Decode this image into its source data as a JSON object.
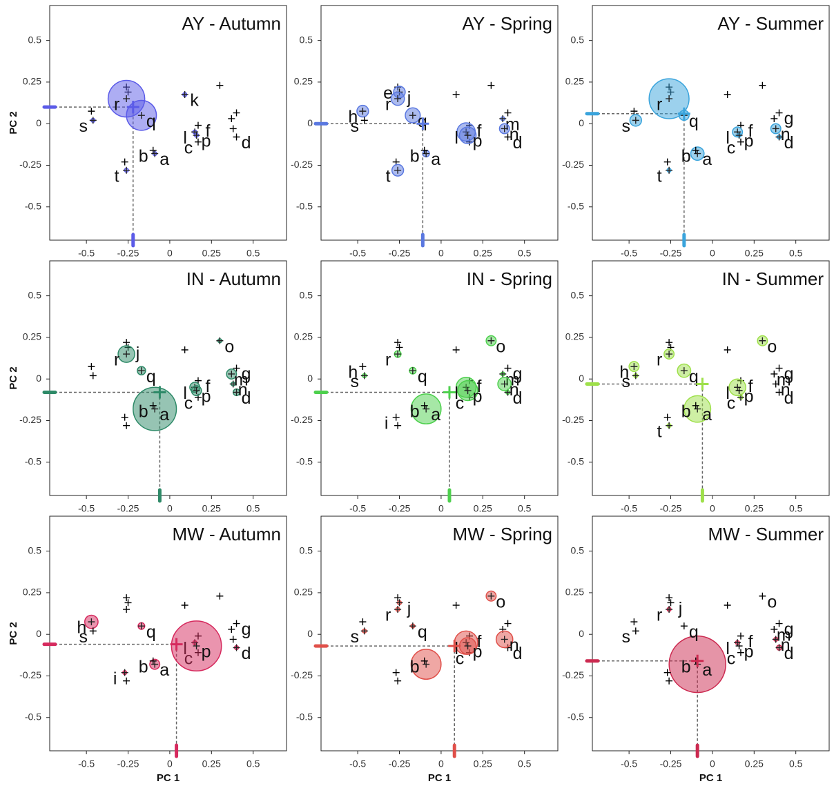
{
  "chart_data": [
    {
      "type": "scatter",
      "title": "AY - Autumn",
      "ylabel": "PC 2",
      "xlim": [
        -0.72,
        0.7
      ],
      "ylim": [
        -0.7,
        0.71
      ],
      "xticks": [
        -0.5,
        -0.25,
        0,
        0.25,
        0.5
      ],
      "yticks": [
        -0.5,
        -0.25,
        0,
        0.25,
        0.5
      ],
      "color": "#5b5be8",
      "labels": [
        "a",
        "b",
        "c",
        "d",
        null,
        "f",
        null,
        null,
        null,
        null,
        "k",
        "l",
        null,
        null,
        null,
        "p",
        "q",
        "r",
        "s",
        "t"
      ],
      "x": [
        -0.09,
        -0.1,
        0.17,
        0.4,
        -0.26,
        0.17,
        0.4,
        -0.47,
        -0.27,
        -0.25,
        0.09,
        0.15,
        0.37,
        0.38,
        0.3,
        0.16,
        -0.17,
        -0.26,
        -0.46,
        -0.26
      ],
      "y": [
        -0.18,
        -0.16,
        -0.11,
        -0.08,
        0.22,
        -0.01,
        0.065,
        0.075,
        -0.23,
        0.19,
        0.175,
        -0.05,
        0.03,
        -0.03,
        0.23,
        -0.07,
        0.05,
        0.15,
        0.02,
        -0.28
      ],
      "sizes": [
        0.012,
        null,
        null,
        null,
        null,
        null,
        null,
        null,
        null,
        null,
        0.012,
        0.012,
        null,
        null,
        null,
        0.012,
        0.09,
        0.11,
        0.012,
        0.012
      ],
      "centroid": [
        -0.22,
        0.1
      ]
    },
    {
      "type": "scatter",
      "title": "AY - Spring",
      "xlim": [
        -0.72,
        0.7
      ],
      "ylim": [
        -0.7,
        0.71
      ],
      "xticks": [
        -0.5,
        -0.25,
        0,
        0.25,
        0.5
      ],
      "yticks": [
        -0.5,
        -0.25,
        0,
        0.25,
        0.5
      ],
      "color": "#5a78e0",
      "labels": [
        "a",
        "b",
        null,
        "d",
        "e",
        "f",
        null,
        "h",
        null,
        "j",
        null,
        "l",
        "m",
        "n",
        null,
        "p",
        "q",
        "r",
        "s",
        "t"
      ],
      "x": [
        -0.09,
        -0.1,
        0.17,
        0.4,
        -0.26,
        0.17,
        0.4,
        -0.47,
        -0.27,
        -0.25,
        0.09,
        0.15,
        0.37,
        0.38,
        0.3,
        0.16,
        -0.17,
        -0.26,
        -0.46,
        -0.26
      ],
      "y": [
        -0.18,
        -0.16,
        -0.11,
        -0.08,
        0.22,
        -0.01,
        0.065,
        0.075,
        -0.23,
        0.19,
        0.175,
        -0.05,
        0.03,
        -0.03,
        0.23,
        -0.07,
        0.05,
        0.15,
        0.02,
        -0.28
      ],
      "sizes": [
        0.02,
        null,
        null,
        null,
        null,
        null,
        null,
        0.035,
        null,
        0.035,
        null,
        0.055,
        0.012,
        0.03,
        null,
        0.05,
        0.045,
        0.04,
        null,
        0.035
      ],
      "centroid": [
        -0.11,
        0.0
      ]
    },
    {
      "type": "scatter",
      "title": "AY - Summer",
      "xlim": [
        -0.72,
        0.7
      ],
      "ylim": [
        -0.7,
        0.71
      ],
      "xticks": [
        -0.5,
        -0.25,
        0,
        0.25,
        0.5
      ],
      "yticks": [
        -0.5,
        -0.25,
        0,
        0.25,
        0.5
      ],
      "color": "#3aa4dc",
      "labels": [
        "a",
        "b",
        "c",
        "d",
        null,
        "f",
        "g",
        null,
        null,
        null,
        null,
        "l",
        null,
        "n",
        null,
        "p",
        "q",
        "r",
        "s",
        "t"
      ],
      "x": [
        -0.09,
        -0.1,
        0.17,
        0.4,
        -0.26,
        0.17,
        0.4,
        -0.47,
        -0.27,
        -0.25,
        0.09,
        0.15,
        0.37,
        0.38,
        0.3,
        0.16,
        -0.17,
        -0.26,
        -0.46,
        -0.26
      ],
      "y": [
        -0.18,
        -0.16,
        -0.11,
        -0.08,
        0.22,
        -0.01,
        0.065,
        0.075,
        -0.23,
        0.19,
        0.175,
        -0.05,
        0.03,
        -0.03,
        0.23,
        -0.07,
        0.05,
        0.15,
        0.02,
        -0.28
      ],
      "sizes": [
        0.04,
        null,
        null,
        0.012,
        null,
        null,
        null,
        null,
        null,
        null,
        null,
        0.03,
        null,
        0.03,
        null,
        0.012,
        0.03,
        0.12,
        0.035,
        0.012
      ],
      "centroid": [
        -0.17,
        0.06
      ]
    },
    {
      "type": "scatter",
      "title": "IN - Autumn",
      "ylabel": "PC 2",
      "xlim": [
        -0.72,
        0.7
      ],
      "ylim": [
        -0.7,
        0.71
      ],
      "xticks": [
        -0.5,
        -0.25,
        0,
        0.25,
        0.5
      ],
      "yticks": [
        -0.5,
        -0.25,
        0,
        0.25,
        0.5
      ],
      "color": "#2e8a68",
      "labels": [
        "a",
        "b",
        "c",
        "d",
        null,
        "f",
        "g",
        null,
        null,
        "j",
        null,
        "l",
        "m",
        "n",
        "o",
        "p",
        "q",
        "r",
        null,
        null
      ],
      "x": [
        -0.09,
        -0.1,
        0.17,
        0.4,
        -0.26,
        0.17,
        0.4,
        -0.47,
        -0.27,
        -0.25,
        0.09,
        0.15,
        0.37,
        0.38,
        0.3,
        0.16,
        -0.17,
        -0.26,
        -0.46,
        -0.26
      ],
      "y": [
        -0.18,
        -0.16,
        -0.11,
        -0.08,
        0.22,
        -0.01,
        0.065,
        0.075,
        -0.23,
        0.19,
        0.175,
        -0.05,
        0.03,
        -0.03,
        0.23,
        -0.07,
        0.05,
        0.15,
        0.02,
        -0.28
      ],
      "sizes": [
        0.13,
        null,
        null,
        0.02,
        null,
        null,
        null,
        null,
        null,
        null,
        null,
        0.03,
        0.03,
        0.012,
        0.012,
        0.03,
        0.025,
        0.05,
        null,
        null
      ],
      "centroid": [
        -0.06,
        -0.08
      ]
    },
    {
      "type": "scatter",
      "title": "IN - Spring",
      "xlim": [
        -0.72,
        0.7
      ],
      "ylim": [
        -0.7,
        0.71
      ],
      "xticks": [
        -0.5,
        -0.25,
        0,
        0.25,
        0.5
      ],
      "yticks": [
        -0.5,
        -0.25,
        0,
        0.25,
        0.5
      ],
      "color": "#4dd04d",
      "labels": [
        "a",
        "b",
        "c",
        "d",
        null,
        "f",
        "g",
        "h",
        "i",
        null,
        null,
        "l",
        "m",
        "n",
        "o",
        "p",
        "q",
        "r",
        "s",
        null
      ],
      "x": [
        -0.09,
        -0.1,
        0.17,
        0.4,
        -0.26,
        0.17,
        0.4,
        -0.47,
        -0.27,
        -0.25,
        0.09,
        0.15,
        0.37,
        0.38,
        0.3,
        0.16,
        -0.17,
        -0.26,
        -0.46,
        -0.26
      ],
      "y": [
        -0.18,
        -0.16,
        -0.11,
        -0.08,
        0.22,
        -0.01,
        0.065,
        0.075,
        -0.23,
        0.19,
        0.175,
        -0.05,
        0.03,
        -0.03,
        0.23,
        -0.07,
        0.05,
        0.15,
        0.02,
        -0.28
      ],
      "sizes": [
        0.09,
        null,
        null,
        0.012,
        null,
        null,
        null,
        null,
        null,
        null,
        null,
        0.06,
        0.012,
        0.04,
        0.03,
        0.06,
        0.02,
        0.02,
        0.012,
        null
      ],
      "centroid": [
        0.05,
        -0.08
      ]
    },
    {
      "type": "scatter",
      "title": "IN - Summer",
      "xlim": [
        -0.72,
        0.7
      ],
      "ylim": [
        -0.7,
        0.71
      ],
      "xticks": [
        -0.5,
        -0.25,
        0,
        0.25,
        0.5
      ],
      "yticks": [
        -0.5,
        -0.25,
        0,
        0.25,
        0.5
      ],
      "color": "#9ee04a",
      "labels": [
        "a",
        "b",
        "c",
        "d",
        null,
        "f",
        "g",
        "h",
        null,
        null,
        null,
        "l",
        "m",
        "n",
        "o",
        "p",
        "q",
        "r",
        "s",
        "t"
      ],
      "x": [
        -0.09,
        -0.1,
        0.17,
        0.4,
        -0.26,
        0.17,
        0.4,
        -0.47,
        -0.27,
        -0.25,
        0.09,
        0.15,
        0.37,
        0.38,
        0.3,
        0.16,
        -0.17,
        -0.26,
        -0.46,
        -0.26
      ],
      "y": [
        -0.18,
        -0.16,
        -0.11,
        -0.08,
        0.22,
        -0.01,
        0.065,
        0.075,
        -0.23,
        0.19,
        0.175,
        -0.05,
        0.03,
        -0.03,
        0.23,
        -0.07,
        0.05,
        0.15,
        0.02,
        -0.28
      ],
      "sizes": [
        0.08,
        null,
        0.012,
        null,
        null,
        null,
        null,
        0.03,
        null,
        null,
        null,
        0.05,
        null,
        null,
        0.03,
        null,
        0.04,
        0.03,
        0.012,
        0.012
      ],
      "centroid": [
        -0.06,
        -0.03
      ]
    },
    {
      "type": "scatter",
      "title": "MW - Autumn",
      "xlabel": "PC 1",
      "ylabel": "PC 2",
      "xlim": [
        -0.72,
        0.7
      ],
      "ylim": [
        -0.7,
        0.71
      ],
      "xticks": [
        -0.5,
        -0.25,
        0,
        0.25,
        0.5
      ],
      "yticks": [
        -0.5,
        -0.25,
        0,
        0.25,
        0.5
      ],
      "color": "#d62a5e",
      "labels": [
        "a",
        "b",
        "c",
        "d",
        null,
        null,
        "g",
        "h",
        "i",
        null,
        null,
        "l",
        null,
        null,
        null,
        "p",
        "q",
        null,
        "s",
        null
      ],
      "x": [
        -0.09,
        -0.1,
        0.17,
        0.4,
        -0.26,
        0.17,
        0.4,
        -0.47,
        -0.27,
        -0.25,
        0.09,
        0.15,
        0.37,
        0.38,
        0.3,
        0.16,
        -0.17,
        -0.26,
        -0.46,
        -0.26
      ],
      "y": [
        -0.18,
        -0.16,
        -0.11,
        -0.08,
        0.22,
        -0.01,
        0.065,
        0.075,
        -0.23,
        0.19,
        0.175,
        -0.05,
        0.03,
        -0.03,
        0.23,
        -0.07,
        0.05,
        0.15,
        0.02,
        -0.28
      ],
      "sizes": [
        0.03,
        null,
        null,
        0.012,
        null,
        null,
        null,
        0.04,
        0.012,
        null,
        null,
        0.012,
        null,
        null,
        null,
        0.15,
        0.02,
        null,
        null,
        null
      ],
      "centroid": [
        0.04,
        -0.06
      ]
    },
    {
      "type": "scatter",
      "title": "MW - Spring",
      "xlabel": "PC 1",
      "xlim": [
        -0.72,
        0.7
      ],
      "ylim": [
        -0.7,
        0.71
      ],
      "xticks": [
        -0.5,
        -0.25,
        0,
        0.25,
        0.5
      ],
      "yticks": [
        -0.5,
        -0.25,
        0,
        0.25,
        0.5
      ],
      "color": "#e0504a",
      "labels": [
        null,
        "b",
        "c",
        "d",
        null,
        "f",
        null,
        null,
        null,
        "j",
        null,
        "l",
        null,
        "n",
        "o",
        "p",
        "q",
        "r",
        "s",
        null
      ],
      "x": [
        -0.09,
        -0.1,
        0.17,
        0.4,
        -0.26,
        0.17,
        0.4,
        -0.47,
        -0.27,
        -0.25,
        0.09,
        0.15,
        0.37,
        0.38,
        0.3,
        0.16,
        -0.17,
        -0.26,
        -0.46,
        -0.26
      ],
      "y": [
        -0.18,
        -0.16,
        -0.11,
        -0.08,
        0.22,
        -0.01,
        0.065,
        0.075,
        -0.23,
        0.19,
        0.175,
        -0.05,
        0.03,
        -0.03,
        0.23,
        -0.07,
        0.05,
        0.15,
        0.02,
        -0.28
      ],
      "sizes": [
        0.09,
        null,
        null,
        null,
        null,
        null,
        null,
        null,
        null,
        0.012,
        null,
        0.07,
        null,
        0.05,
        0.03,
        0.05,
        0.012,
        0.012,
        0.012,
        null
      ],
      "centroid": [
        0.08,
        -0.07
      ]
    },
    {
      "type": "scatter",
      "title": "MW - Summer",
      "xlabel": "PC 1",
      "xlim": [
        -0.72,
        0.7
      ],
      "ylim": [
        -0.7,
        0.71
      ],
      "xticks": [
        -0.5,
        -0.25,
        0,
        0.25,
        0.5
      ],
      "yticks": [
        -0.5,
        -0.25,
        0,
        0.25,
        0.5
      ],
      "color": "#cc2a50",
      "labels": [
        "a",
        "b",
        "c",
        "d",
        null,
        "f",
        "g",
        null,
        null,
        "j",
        null,
        "l",
        "m",
        "n",
        "o",
        "p",
        "q",
        "r",
        "s",
        null
      ],
      "x": [
        -0.09,
        -0.1,
        0.17,
        0.4,
        -0.26,
        0.17,
        0.4,
        -0.47,
        -0.27,
        -0.25,
        0.09,
        0.15,
        0.37,
        0.38,
        0.3,
        0.16,
        -0.17,
        -0.26,
        -0.46,
        -0.26
      ],
      "y": [
        -0.18,
        -0.16,
        -0.11,
        -0.08,
        0.22,
        -0.01,
        0.065,
        0.075,
        -0.23,
        0.19,
        0.175,
        -0.05,
        0.03,
        -0.03,
        0.23,
        -0.07,
        0.05,
        0.15,
        0.02,
        -0.28
      ],
      "sizes": [
        0.17,
        null,
        null,
        0.015,
        null,
        null,
        null,
        null,
        null,
        null,
        null,
        0.012,
        null,
        0.012,
        null,
        null,
        null,
        0.012,
        null,
        null
      ],
      "centroid": [
        -0.09,
        -0.16
      ]
    }
  ]
}
